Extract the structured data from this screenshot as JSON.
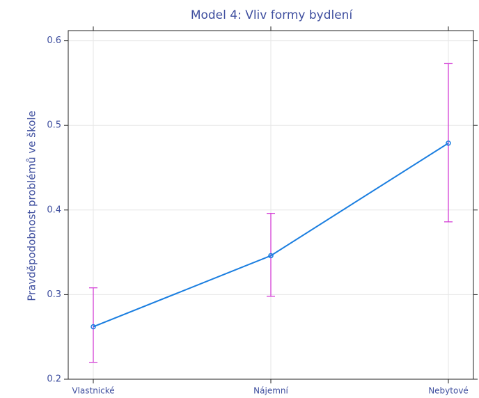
{
  "chart_data": {
    "type": "line",
    "title": "Model 4: Vliv formy bydlení",
    "y_label": "Pravděpodobnost problémů ve škole",
    "categories": [
      "Vlastnické",
      "Nájemní",
      "Nebytové"
    ],
    "series": [
      {
        "color": "#1a7ee0",
        "error_color": "#d43fd6",
        "values": [
          0.262,
          0.346,
          0.479
        ],
        "ci_lower": [
          0.22,
          0.298,
          0.386
        ],
        "ci_upper": [
          0.308,
          0.396,
          0.573
        ]
      }
    ],
    "ylim": [
      0.2,
      0.612
    ],
    "yticks": [
      0.2,
      0.3,
      0.4,
      0.5,
      0.6
    ],
    "grid": true
  }
}
